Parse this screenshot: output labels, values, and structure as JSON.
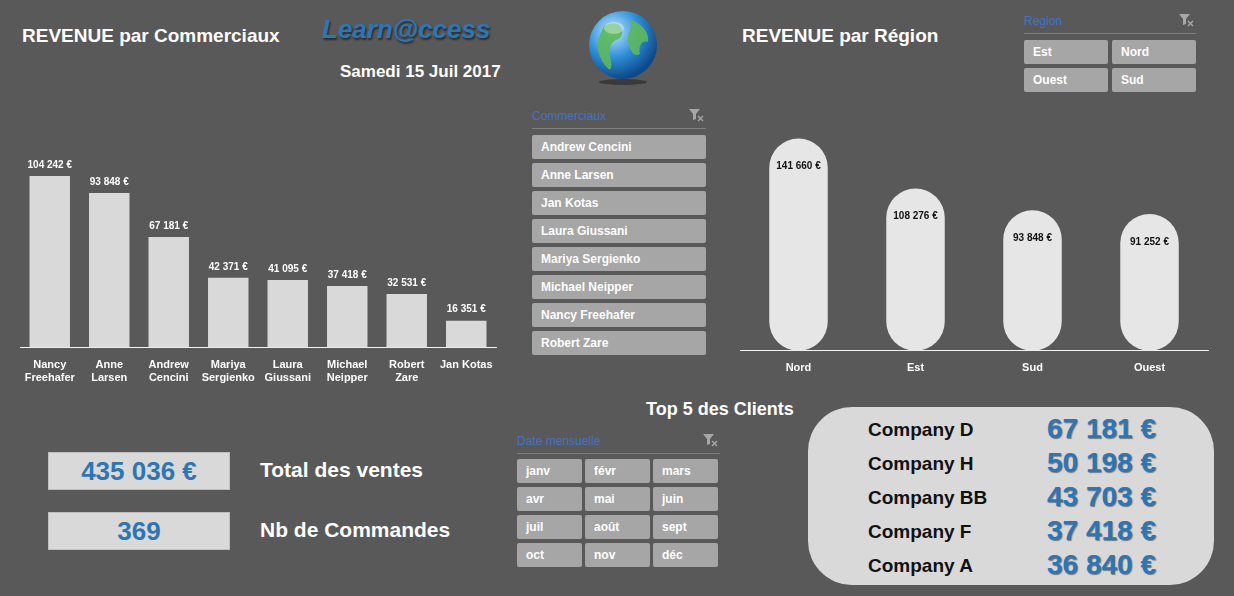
{
  "header": {
    "logo": "Learn@ccess",
    "date": "Samedi 15 Juil 2017"
  },
  "chart_data": [
    {
      "type": "bar",
      "title": "REVENUE par Commerciaux",
      "categories": [
        "Nancy Freehafer",
        "Anne Larsen",
        "Andrew Cencini",
        "Mariya Sergienko",
        "Laura Giussani",
        "Michael Neipper",
        "Robert Zare",
        "Jan Kotas"
      ],
      "values": [
        104242,
        93848,
        67181,
        42371,
        41095,
        37418,
        32531,
        16351
      ],
      "value_labels": [
        "104 242 €",
        "93 848 €",
        "67 181 €",
        "42 371 €",
        "41 095 €",
        "37 418 €",
        "32 531 €",
        "16 351 €"
      ],
      "color": "#d9d9d9",
      "ylim": [
        0,
        120000
      ],
      "grid": false,
      "data_labels": true,
      "tick_labels": "x"
    },
    {
      "type": "bar",
      "title": "REVENUE par Région",
      "categories": [
        "Nord",
        "Est",
        "Sud",
        "Ouest"
      ],
      "values": [
        141660,
        108276,
        93848,
        91252
      ],
      "value_labels": [
        "141 660 €",
        "108 276 €",
        "93 848 €",
        "91 252 €"
      ],
      "color": "#e6e6e6",
      "ylim": [
        0,
        150000
      ],
      "grid": false,
      "data_labels": true,
      "tick_labels": "x"
    }
  ],
  "slicers": [
    {
      "title": "Commerciaux",
      "items": [
        "Andrew Cencini",
        "Anne Larsen",
        "Jan Kotas",
        "Laura Giussani",
        "Mariya Sergienko",
        "Michael Neipper",
        "Nancy Freehafer",
        "Robert Zare"
      ]
    },
    {
      "title": "Region",
      "items": [
        "Est",
        "Nord",
        "Ouest",
        "Sud"
      ]
    },
    {
      "title": "Date mensuelle",
      "items": [
        "janv",
        "févr",
        "mars",
        "avr",
        "mai",
        "juin",
        "juil",
        "août",
        "sept",
        "oct",
        "nov",
        "déc"
      ]
    }
  ],
  "kpis": [
    {
      "value": "435 036 €",
      "label": "Total des ventes"
    },
    {
      "value": "369",
      "label": "Nb de Commandes"
    }
  ],
  "top_clients": {
    "title": "Top 5 des Clients",
    "rows": [
      [
        "Company D",
        "67 181 €"
      ],
      [
        "Company H",
        "50 198 €"
      ],
      [
        "Company BB",
        "43 703 €"
      ],
      [
        "Company F",
        "37 418 €"
      ],
      [
        "Company A",
        "36 840 €"
      ]
    ]
  }
}
